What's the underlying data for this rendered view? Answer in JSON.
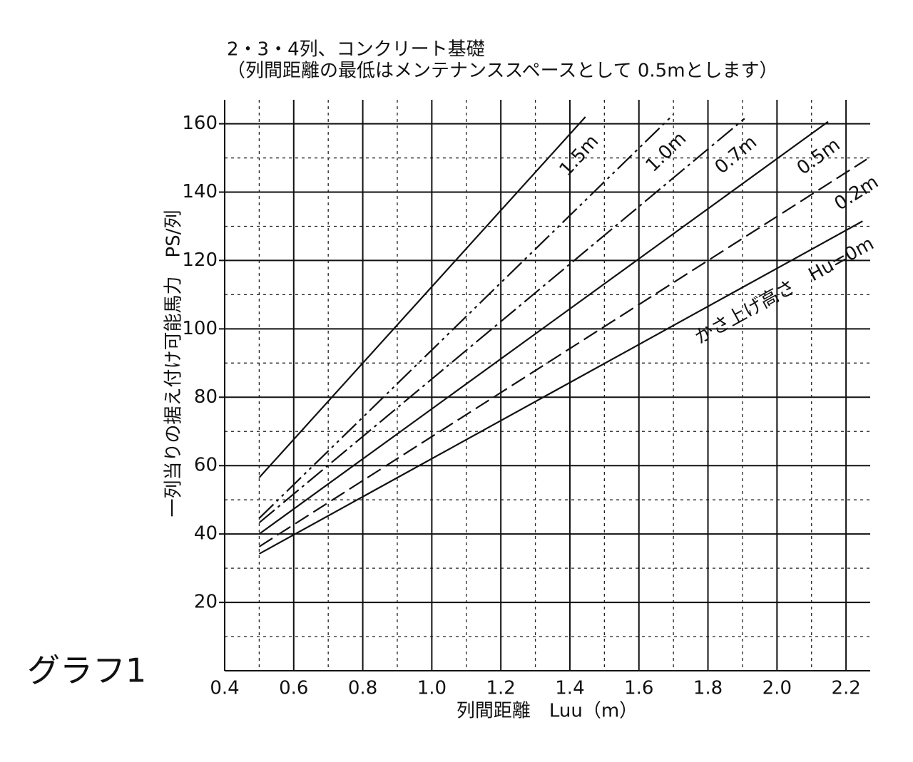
{
  "chart_data": {
    "type": "line",
    "title": "2・3・4列、コンクリート基礎",
    "subtitle": "（列間距離の最低はメンテナンススペースとして 0.5mとします）",
    "xlabel": "列間距離　Luu（m）",
    "ylabel": "一列当りの据え付け可能馬力　PS/列",
    "annotation": "グラフ1",
    "xlim": [
      0.4,
      2.27
    ],
    "ylim": [
      0,
      167
    ],
    "xticks": [
      0.4,
      0.6,
      0.8,
      {
        "value": 1,
        "label": "1.0"
      },
      1.2,
      1.4,
      1.6,
      1.8,
      {
        "value": 2,
        "label": "2.0"
      },
      2.2
    ],
    "yticks": [
      20,
      40,
      60,
      80,
      100,
      120,
      140,
      160
    ],
    "xminorticks": [
      0.5,
      0.7,
      0.9,
      1.1,
      1.3,
      1.5,
      1.7,
      1.9,
      2.1
    ],
    "yminorticks": [
      10,
      30,
      50,
      70,
      90,
      110,
      130,
      150
    ],
    "grid": true,
    "series": [
      {
        "name": "1.5m",
        "color": "#111",
        "dash": "solid",
        "x": [
          0.5,
          1.445
        ],
        "values": [
          56.5,
          162
        ]
      },
      {
        "name": "1.0m",
        "color": "#111",
        "dash": "dashdotdot",
        "x": [
          0.5,
          1.7
        ],
        "values": [
          44.6,
          162.7
        ]
      },
      {
        "name": "0.7m",
        "color": "#111",
        "dash": "dashdot",
        "x": [
          0.5,
          1.906
        ],
        "values": [
          43.3,
          161.5
        ]
      },
      {
        "name": "0.5m",
        "color": "#111",
        "dash": "solid",
        "x": [
          0.5,
          2.148
        ],
        "values": [
          40,
          160.6
        ]
      },
      {
        "name": "0.2m",
        "color": "#111",
        "dash": "dashed",
        "x": [
          0.5,
          2.26
        ],
        "values": [
          36.3,
          149.6
        ]
      },
      {
        "name": "かさ上げ高さ　Hu=0m",
        "color": "#111",
        "dash": "solid",
        "x": [
          0.5,
          2.248
        ],
        "values": [
          34.2,
          131.5
        ]
      }
    ]
  }
}
